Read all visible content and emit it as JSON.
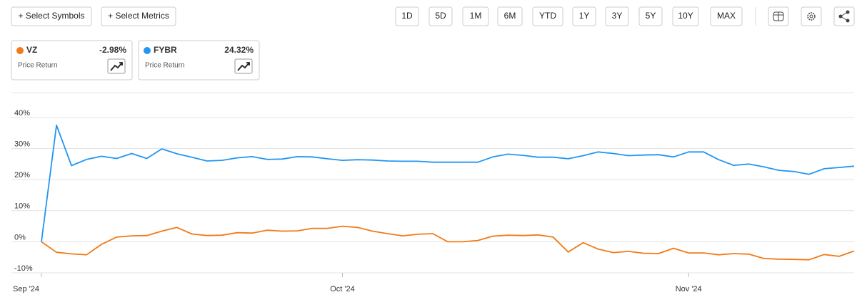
{
  "toolbar": {
    "actions": [
      "+ Select Symbols",
      "+ Select Metrics"
    ],
    "ranges": [
      "1D",
      "5D",
      "1M",
      "6M",
      "YTD",
      "1Y",
      "3Y",
      "5Y",
      "10Y",
      "MAX"
    ]
  },
  "chart_data": {
    "type": "line",
    "categories": [
      "Sep '24",
      null,
      null,
      null,
      null,
      null,
      null,
      null,
      null,
      null,
      null,
      null,
      null,
      null,
      null,
      null,
      null,
      null,
      null,
      null,
      "Oct '24",
      null,
      null,
      null,
      null,
      null,
      null,
      null,
      null,
      null,
      null,
      null,
      null,
      null,
      null,
      null,
      null,
      null,
      null,
      null,
      null,
      null,
      null,
      "Nov '24",
      null,
      null,
      null,
      null,
      null,
      null,
      null,
      null,
      null,
      null,
      null
    ],
    "series": [
      {
        "name": "VZ",
        "color": "#f27a18",
        "metric": "Price Return",
        "summary": {
          "value": -2.98,
          "label": "-2.98%"
        },
        "values": [
          0,
          -3.4,
          -3.9,
          -4.2,
          -0.8,
          1.5,
          1.9,
          2.0,
          3.4,
          4.6,
          2.5,
          2.0,
          2.1,
          2.9,
          2.8,
          3.7,
          3.4,
          3.5,
          4.3,
          4.3,
          5.0,
          4.6,
          3.4,
          2.6,
          1.9,
          2.4,
          2.6,
          0,
          0,
          0.4,
          1.8,
          2.1,
          2.0,
          2.2,
          1.5,
          -3.3,
          -0.3,
          -2.4,
          -3.5,
          -3.1,
          -3.7,
          -3.8,
          -2.1,
          -3.6,
          -3.6,
          -4.2,
          -3.8,
          -4.0,
          -5.4,
          -5.6,
          -5.7,
          -5.8,
          -4.1,
          -4.7,
          -2.98
        ]
      },
      {
        "name": "FYBR",
        "color": "#2196f3",
        "metric": "Price Return",
        "summary": {
          "value": 24.32,
          "label": "24.32%"
        },
        "values": [
          0,
          37.5,
          24.5,
          26.5,
          27.5,
          26.8,
          28.4,
          26.8,
          29.9,
          28.3,
          27.2,
          26.0,
          26.2,
          27.0,
          27.4,
          26.5,
          26.6,
          27.4,
          27.3,
          26.7,
          26.2,
          26.4,
          26.3,
          26.0,
          25.9,
          25.9,
          25.6,
          25.6,
          25.6,
          25.6,
          27.3,
          28.2,
          27.8,
          27.2,
          27.2,
          26.7,
          27.7,
          28.9,
          28.4,
          27.7,
          27.9,
          28.0,
          27.3,
          28.9,
          28.9,
          26.4,
          24.6,
          25.0,
          24.1,
          23.0,
          22.6,
          21.7,
          23.5,
          23.9,
          24.32
        ]
      }
    ],
    "ylim": [
      -10,
      48
    ],
    "yticks": [
      {
        "value": -10,
        "label": "-10%"
      },
      {
        "value": 0,
        "label": "0%"
      },
      {
        "value": 10,
        "label": "10%"
      },
      {
        "value": 20,
        "label": "20%"
      },
      {
        "value": 30,
        "label": "30%"
      },
      {
        "value": 40,
        "label": "40%"
      }
    ],
    "grid": true
  }
}
